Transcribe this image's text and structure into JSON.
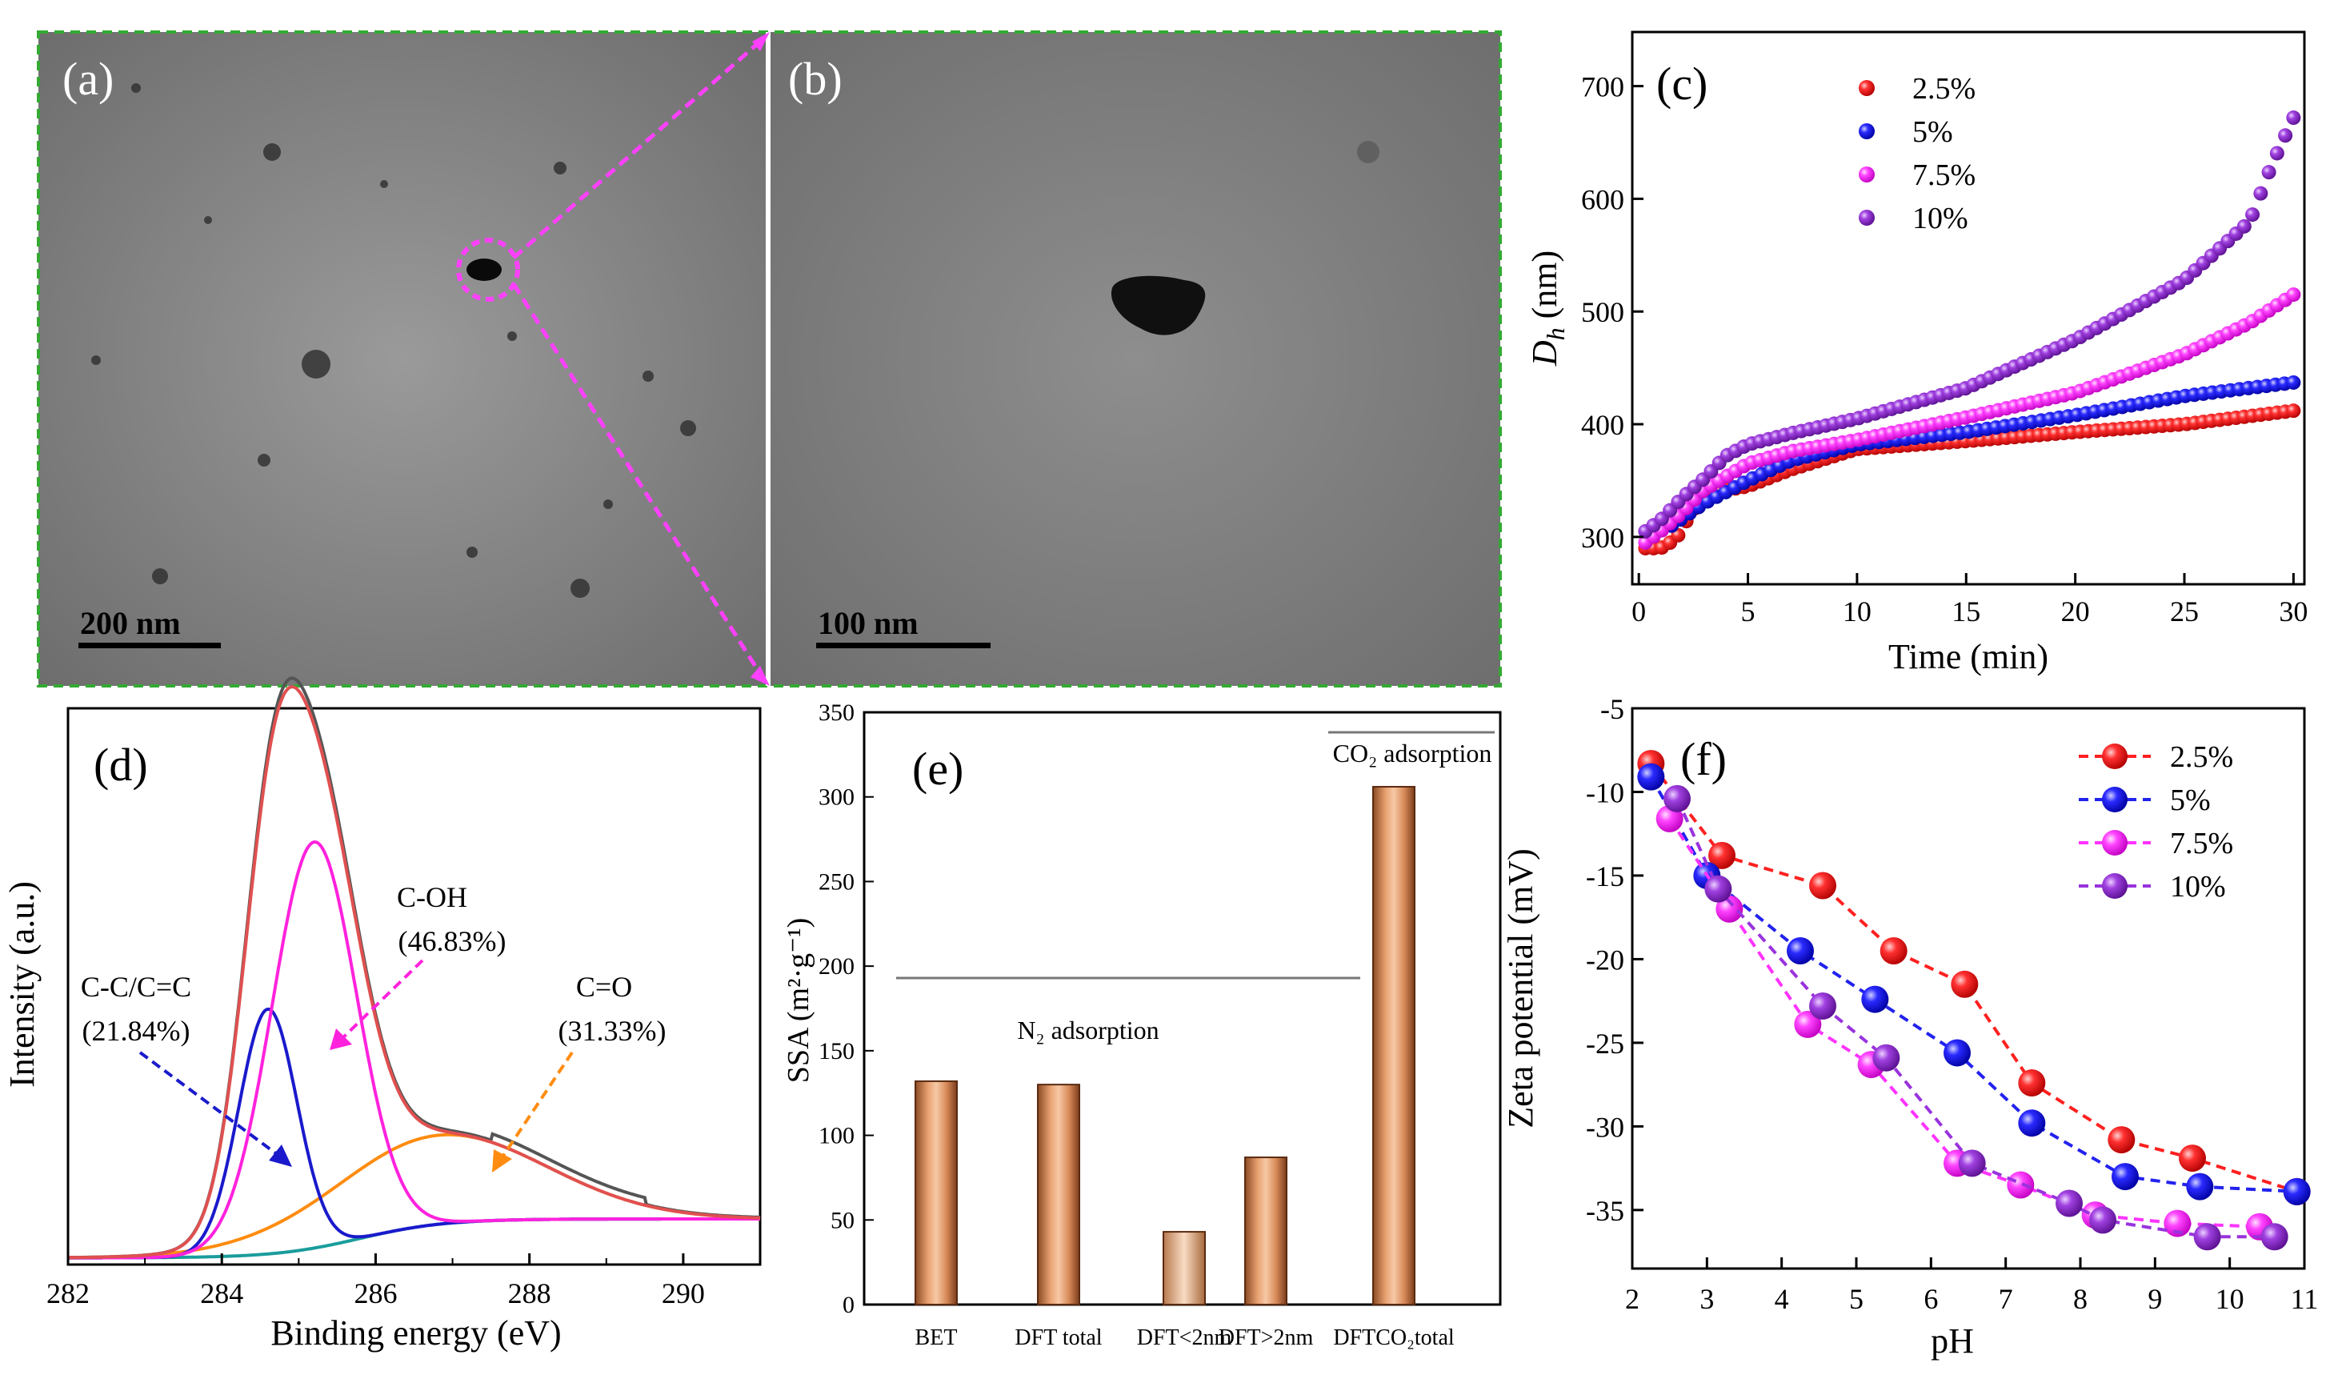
{
  "figure": {
    "panel_a": {
      "label": "(a)",
      "scale_bar": "200 nm"
    },
    "panel_b": {
      "label": "(b)",
      "scale_bar": "100 nm"
    }
  },
  "chart_data": [
    {
      "id": "c",
      "panel": "(c)",
      "type": "scatter",
      "xlabel": "Time (min)",
      "ylabel_main": "D",
      "ylabel_sub": "h",
      "ylabel_unit": " (nm)",
      "xlim": [
        -0.3,
        30.5
      ],
      "ylim": [
        258,
        748
      ],
      "xticks": [
        0,
        5,
        10,
        15,
        20,
        25,
        30
      ],
      "yticks": [
        300,
        400,
        500,
        600,
        700
      ],
      "legend": [
        {
          "name": "2.5%",
          "color": "#ff2020"
        },
        {
          "name": "5%",
          "color": "#2222ee"
        },
        {
          "name": "7.5%",
          "color": "#ff33ff"
        },
        {
          "name": "10%",
          "color": "#9933dd"
        }
      ],
      "series": [
        {
          "name": "2.5%",
          "color": "#ff2020",
          "t_start": 0.3,
          "t_end": 30,
          "n": 80,
          "knots": [
            [
              0.3,
              290
            ],
            [
              1,
              290
            ],
            [
              1.7,
              298
            ],
            [
              2.3,
              318
            ],
            [
              3,
              338
            ],
            [
              5,
              345
            ],
            [
              7,
              360
            ],
            [
              10,
              378
            ],
            [
              15,
              385
            ],
            [
              20,
              393
            ],
            [
              25,
              400
            ],
            [
              30,
              412
            ]
          ]
        },
        {
          "name": "5%",
          "color": "#2222ee",
          "t_start": 1.5,
          "t_end": 30,
          "n": 70,
          "knots": [
            [
              1.5,
              310
            ],
            [
              3,
              330
            ],
            [
              5,
              350
            ],
            [
              7,
              368
            ],
            [
              10,
              382
            ],
            [
              15,
              393
            ],
            [
              20,
              408
            ],
            [
              25,
              425
            ],
            [
              30,
              437
            ]
          ]
        },
        {
          "name": "7.5%",
          "color": "#ff33ff",
          "t_start": 0.3,
          "t_end": 30,
          "n": 80,
          "knots": [
            [
              0.3,
              295
            ],
            [
              1,
              305
            ],
            [
              2,
              322
            ],
            [
              3,
              342
            ],
            [
              5,
              365
            ],
            [
              7,
              376
            ],
            [
              10,
              386
            ],
            [
              15,
              406
            ],
            [
              20,
              428
            ],
            [
              25,
              462
            ],
            [
              28,
              490
            ],
            [
              30,
              515
            ]
          ]
        },
        {
          "name": "10%",
          "color": "#9933dd",
          "t_start": 0.3,
          "t_end": 30,
          "n": 80,
          "knots": [
            [
              0.3,
              305
            ],
            [
              1,
              315
            ],
            [
              2,
              335
            ],
            [
              3,
              352
            ],
            [
              4,
              372
            ],
            [
              5,
              382
            ],
            [
              7,
              392
            ],
            [
              10,
              405
            ],
            [
              15,
              432
            ],
            [
              20,
              475
            ],
            [
              25,
              528
            ],
            [
              28,
              580
            ],
            [
              29,
              630
            ],
            [
              30,
              672
            ]
          ]
        }
      ]
    },
    {
      "id": "d",
      "panel": "(d)",
      "type": "line",
      "xlabel": "Binding energy (eV)",
      "ylabel": "Intensity (a.u.)",
      "xlim": [
        282,
        291
      ],
      "ylim": [
        0,
        1.0
      ],
      "xticks": [
        282,
        284,
        286,
        288,
        290
      ],
      "series": [
        {
          "name": "raw",
          "color": "#555555"
        },
        {
          "name": "envelope",
          "color": "#e05050"
        },
        {
          "name": "C-C/C=C",
          "color": "#1a1acc",
          "center": 284.6,
          "height": 0.44,
          "sigma": 0.38
        },
        {
          "name": "C-OH",
          "color": "#ff22dd",
          "center": 285.2,
          "height": 0.73,
          "sigma": 0.55
        },
        {
          "name": "C=O",
          "color": "#ff8c10",
          "center": 286.8,
          "height": 0.16,
          "sigma": 1.4
        },
        {
          "name": "background",
          "color": "#1a9c9c"
        }
      ],
      "annotations": [
        {
          "name": "C-OH",
          "pct": "(46.83%)"
        },
        {
          "name": "C-C/C=C",
          "pct": "(21.84%)"
        },
        {
          "name": "C=O",
          "pct": "(31.33%)"
        }
      ]
    },
    {
      "id": "e",
      "panel": "(e)",
      "type": "bar",
      "ylabel": "SSA (m²·g⁻¹)",
      "ylim": [
        0,
        350
      ],
      "yticks": [
        0,
        50,
        100,
        150,
        200,
        250,
        300,
        350
      ],
      "categories": [
        "BET",
        "DFT total",
        "DFT<2nm",
        "DFT>2nm",
        "DFTCO₂total"
      ],
      "values": [
        132,
        130,
        43,
        87,
        306
      ],
      "group_labels": [
        "N₂ adsorption",
        "CO₂ adsorption"
      ]
    },
    {
      "id": "f",
      "panel": "(f)",
      "type": "line",
      "xlabel": "pH",
      "ylabel": "Zeta potential (mV)",
      "xlim": [
        2,
        11
      ],
      "ylim": [
        -38.5,
        -5
      ],
      "xticks": [
        2,
        3,
        4,
        5,
        6,
        7,
        8,
        9,
        10,
        11
      ],
      "yticks": [
        -5,
        -10,
        -15,
        -20,
        -25,
        -30,
        -35
      ],
      "series": [
        {
          "name": "2.5%",
          "color": "#ff2020",
          "x": [
            2.25,
            3.2,
            4.55,
            5.5,
            6.45,
            7.35,
            8.55,
            9.5,
            10.9
          ],
          "y": [
            -8.3,
            -13.8,
            -15.6,
            -19.5,
            -21.5,
            -27.4,
            -30.8,
            -31.9,
            -33.9
          ]
        },
        {
          "name": "5%",
          "color": "#2222ee",
          "x": [
            2.25,
            3.0,
            4.25,
            5.25,
            6.35,
            7.35,
            8.6,
            9.6,
            10.9
          ],
          "y": [
            -9.1,
            -15.0,
            -19.5,
            -22.4,
            -25.6,
            -29.8,
            -33.0,
            -33.6,
            -33.9
          ]
        },
        {
          "name": "7.5%",
          "color": "#ff33ff",
          "x": [
            2.5,
            3.3,
            4.35,
            5.2,
            6.35,
            7.2,
            8.2,
            9.3,
            10.4
          ],
          "y": [
            -11.6,
            -17.0,
            -23.9,
            -26.3,
            -32.2,
            -33.5,
            -35.3,
            -35.8,
            -36.0
          ]
        },
        {
          "name": "10%",
          "color": "#9933dd",
          "x": [
            2.6,
            3.15,
            4.55,
            5.4,
            6.55,
            7.85,
            8.3,
            9.7,
            10.6
          ],
          "y": [
            -10.4,
            -15.8,
            -22.8,
            -25.9,
            -32.2,
            -34.6,
            -35.6,
            -36.6,
            -36.6
          ]
        }
      ]
    }
  ]
}
